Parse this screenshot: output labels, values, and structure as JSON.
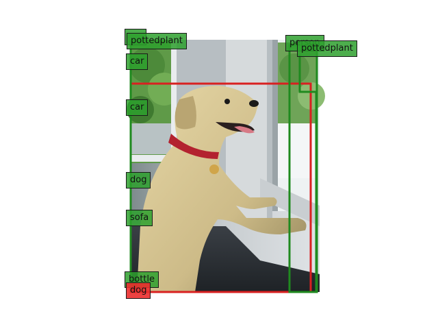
{
  "detections": [
    {
      "label": "pottedplant",
      "color": "#2e9e2e"
    },
    {
      "label": "car",
      "color": "#2e9e2e"
    },
    {
      "label": "car",
      "color": "#2e9e2e"
    },
    {
      "label": "dog",
      "color": "#2e9e2e"
    },
    {
      "label": "sofa",
      "color": "#2e9e2e"
    },
    {
      "label": "bottle",
      "color": "#2e9e2e"
    },
    {
      "label": "dog",
      "color": "#e02020"
    },
    {
      "label": "person",
      "color": "#2e9e2e"
    },
    {
      "label": "pottedplant",
      "color": "#2e9e2e"
    }
  ]
}
